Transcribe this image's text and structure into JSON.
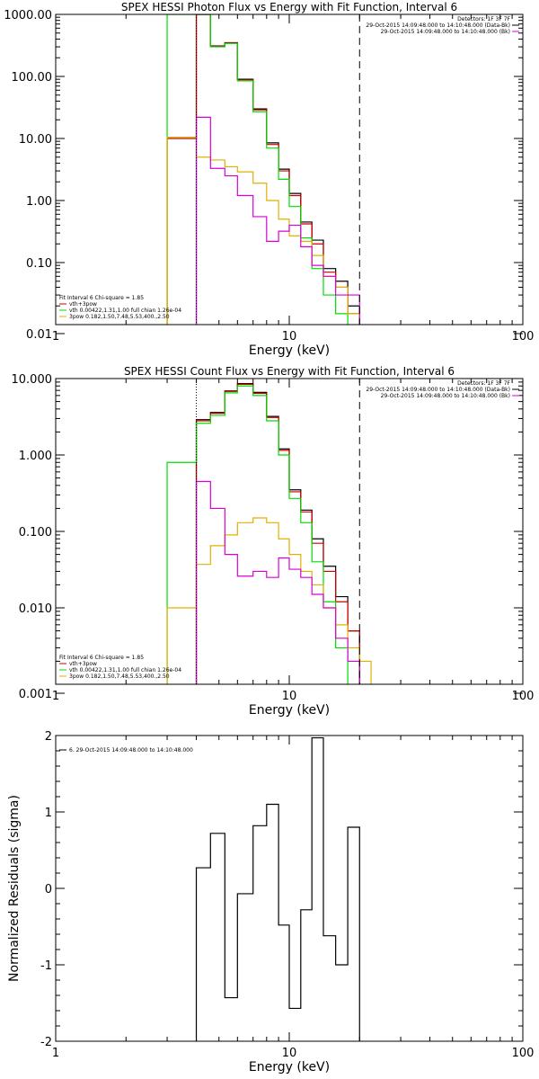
{
  "chart_data": [
    {
      "type": "line",
      "title": "SPEX HESSI Photon Flux vs Energy with Fit Function, Interval 6",
      "xlabel": "Energy (keV)",
      "ylabel": "",
      "xscale": "log",
      "yscale": "log",
      "xlim": [
        1,
        100
      ],
      "ylim": [
        0.01,
        1000
      ],
      "x_ticks": [
        1,
        10,
        100
      ],
      "x_tick_labels": [
        "1",
        "10",
        "100"
      ],
      "y_ticks": [
        0.01,
        0.1,
        1,
        10,
        100,
        1000
      ],
      "y_tick_labels": [
        "0.01",
        "0.10",
        "1.00",
        "10.00",
        "100.00",
        "1000.00"
      ],
      "vlines": [
        {
          "x": 4.0,
          "style": "dotted",
          "color": "#000000"
        },
        {
          "x": 20.0,
          "style": "dashed",
          "color": "#000000"
        }
      ],
      "legend_right": {
        "lines": [
          {
            "text": "Detectors: 1F 3F 7F",
            "color": ""
          },
          {
            "text": "29-Oct-2015 14:09:48.000 to 14:10:48.000 (Data-Bk)",
            "color": "#000000"
          },
          {
            "text": "29-Oct-2015 14:09:48.000 to 14:10:48.000 (Bk)",
            "color": "#d800d8"
          }
        ]
      },
      "legend_left": {
        "header": "Fit Interval  6    Chi-square = 1.85",
        "lines": [
          {
            "text": "vth+3pow",
            "color": "#cc0000"
          },
          {
            "text": "vth 0.00422,1.31,1.00  full chian 1.26e-04",
            "color": "#00dd00"
          },
          {
            "text": "3pow 0.182,1.50,7.48,5.53,400.,2.50",
            "color": "#e0b000"
          }
        ]
      },
      "series": [
        {
          "name": "Data-Bk",
          "color": "#000000",
          "edges": [
            4.0,
            4.6,
            5.3,
            6.0,
            7.0,
            8.0,
            9.0,
            10.0,
            11.2,
            12.5,
            14.0,
            15.8,
            17.8,
            20.0
          ],
          "values": [
            1000,
            310,
            350,
            90,
            30,
            8.5,
            3.2,
            1.3,
            0.45,
            0.23,
            0.08,
            0.05,
            0.02
          ]
        },
        {
          "name": "vth+3pow",
          "color": "#cc0000",
          "edges": [
            3.0,
            4.0,
            4.6,
            5.3,
            6.0,
            7.0,
            8.0,
            9.0,
            10.0,
            11.2,
            12.5,
            14.0,
            15.8,
            17.8,
            20.0
          ],
          "values": [
            10,
            1000,
            305,
            345,
            88,
            29,
            8.0,
            3.0,
            1.2,
            0.42,
            0.2,
            0.07,
            0.04,
            0.015
          ]
        },
        {
          "name": "vth",
          "color": "#00dd00",
          "edges": [
            3.0,
            4.0,
            4.6,
            5.3,
            6.0,
            7.0,
            8.0,
            9.0,
            10.0,
            11.2,
            12.5,
            14.0,
            15.8,
            17.8
          ],
          "values": [
            1000,
            1000,
            300,
            340,
            85,
            27,
            7.0,
            2.2,
            0.8,
            0.25,
            0.08,
            0.03,
            0.015
          ]
        },
        {
          "name": "3pow",
          "color": "#e0b000",
          "edges": [
            3.0,
            4.0,
            4.6,
            5.3,
            6.0,
            7.0,
            8.0,
            9.0,
            10.0,
            11.2,
            12.5,
            14.0,
            15.8,
            17.8,
            20.0
          ],
          "values": [
            10.5,
            5.0,
            4.5,
            3.5,
            2.9,
            1.9,
            1.0,
            0.5,
            0.27,
            0.22,
            0.13,
            0.06,
            0.04,
            0.015
          ]
        },
        {
          "name": "Bk",
          "color": "#d800d8",
          "edges": [
            4.0,
            4.6,
            5.3,
            6.0,
            7.0,
            8.0,
            9.0,
            10.0,
            11.2,
            12.5,
            14.0,
            15.8,
            17.8,
            20.0
          ],
          "values": [
            22,
            3.3,
            2.5,
            1.2,
            0.55,
            0.22,
            0.32,
            0.4,
            0.18,
            0.09,
            0.06,
            0.03,
            0.03
          ]
        }
      ]
    },
    {
      "type": "line",
      "title": "SPEX HESSI Count Flux vs Energy with Fit Function, Interval 6",
      "xlabel": "Energy (keV)",
      "ylabel": "",
      "xscale": "log",
      "yscale": "log",
      "xlim": [
        1,
        100
      ],
      "ylim": [
        0.001,
        10
      ],
      "x_ticks": [
        1,
        10,
        100
      ],
      "x_tick_labels": [
        "1",
        "10",
        "100"
      ],
      "y_ticks": [
        0.001,
        0.01,
        0.1,
        1,
        10
      ],
      "y_tick_labels": [
        "0.001",
        "0.010",
        "0.100",
        "1.000",
        "10.000"
      ],
      "vlines": [
        {
          "x": 4.0,
          "style": "dotted",
          "color": "#000000"
        },
        {
          "x": 20.0,
          "style": "dashed",
          "color": "#000000"
        }
      ],
      "legend_right": {
        "lines": [
          {
            "text": "Detectors: 1F 3F 7F",
            "color": ""
          },
          {
            "text": "29-Oct-2015 14:09:48.000 to 14:10:48.000 (Data-Bk)",
            "color": "#000000"
          },
          {
            "text": "29-Oct-2015 14:09:48.000 to 14:10:48.000 (Bk)",
            "color": "#d800d8"
          }
        ]
      },
      "legend_left": {
        "header": "Fit Interval  6    Chi-square = 1.85",
        "lines": [
          {
            "text": "vth+3pow",
            "color": "#cc0000"
          },
          {
            "text": "vth 0.00422,1.31,1.00  full chian 1.26e-04",
            "color": "#00dd00"
          },
          {
            "text": "3pow 0.182,1.50,7.48,5.53,400.,2.50",
            "color": "#e0b000"
          }
        ]
      },
      "series": [
        {
          "name": "Data-Bk",
          "color": "#000000",
          "edges": [
            4.0,
            4.6,
            5.3,
            6.0,
            7.0,
            8.0,
            9.0,
            10.0,
            11.2,
            12.5,
            14.0,
            15.8,
            17.8,
            20.0
          ],
          "values": [
            2.9,
            3.6,
            6.9,
            8.6,
            6.6,
            3.2,
            1.2,
            0.35,
            0.19,
            0.08,
            0.035,
            0.014,
            0.005
          ]
        },
        {
          "name": "vth+3pow",
          "color": "#cc0000",
          "edges": [
            4.0,
            4.6,
            5.3,
            6.0,
            7.0,
            8.0,
            9.0,
            10.0,
            11.2,
            12.5,
            14.0,
            15.8,
            17.8,
            20.0
          ],
          "values": [
            2.8,
            3.5,
            6.8,
            8.4,
            6.4,
            3.1,
            1.15,
            0.33,
            0.18,
            0.07,
            0.03,
            0.012,
            0.005
          ]
        },
        {
          "name": "vth",
          "color": "#00dd00",
          "edges": [
            3.0,
            4.0,
            4.6,
            5.3,
            6.0,
            7.0,
            8.0,
            9.0,
            10.0,
            11.2,
            12.5,
            14.0,
            15.8,
            17.8
          ],
          "values": [
            0.8,
            2.6,
            3.3,
            6.5,
            8.0,
            6.0,
            2.8,
            1.0,
            0.27,
            0.13,
            0.04,
            0.012,
            0.003
          ]
        },
        {
          "name": "3pow",
          "color": "#e0b000",
          "edges": [
            3.0,
            4.0,
            4.6,
            5.3,
            6.0,
            7.0,
            8.0,
            9.0,
            10.0,
            11.2,
            12.5,
            14.0,
            15.8,
            17.8,
            20.0,
            22.4
          ],
          "values": [
            0.01,
            0.037,
            0.065,
            0.09,
            0.13,
            0.15,
            0.13,
            0.08,
            0.05,
            0.03,
            0.02,
            0.01,
            0.006,
            0.003,
            0.002
          ]
        },
        {
          "name": "Bk",
          "color": "#d800d8",
          "edges": [
            4.0,
            4.6,
            5.3,
            6.0,
            7.0,
            8.0,
            9.0,
            10.0,
            11.2,
            12.5,
            14.0,
            15.8,
            17.8,
            20.0
          ],
          "values": [
            0.45,
            0.2,
            0.05,
            0.026,
            0.03,
            0.025,
            0.045,
            0.032,
            0.025,
            0.015,
            0.01,
            0.004,
            0.002
          ]
        }
      ]
    },
    {
      "type": "line",
      "title": "",
      "xlabel": "Energy (keV)",
      "ylabel": "Normalized Residuals (sigma)",
      "xscale": "log",
      "yscale": "linear",
      "xlim": [
        1,
        100
      ],
      "ylim": [
        -2,
        2
      ],
      "x_ticks": [
        1,
        10,
        100
      ],
      "x_tick_labels": [
        "1",
        "10",
        "100"
      ],
      "y_ticks": [
        -2,
        -1,
        0,
        1,
        2
      ],
      "y_tick_labels": [
        "-2",
        "-1",
        "0",
        "1",
        "2"
      ],
      "vlines": [],
      "legend_left": {
        "header": "",
        "lines": [
          {
            "text": "6. 29-Oct-2015 14:09:48.000 to 14:10:48.000",
            "color": "#000000"
          }
        ]
      },
      "series": [
        {
          "name": "",
          "color": "#000000",
          "edges": [
            4.0,
            4.6,
            5.3,
            6.0,
            7.0,
            8.0,
            9.0,
            10.0,
            11.2,
            12.5,
            14.0,
            15.8,
            17.8,
            20.0
          ],
          "values": [
            0.27,
            0.72,
            -1.43,
            -0.07,
            0.82,
            1.1,
            -0.48,
            -1.57,
            -0.28,
            1.97,
            -0.62,
            -1.0,
            0.8
          ]
        }
      ]
    }
  ]
}
